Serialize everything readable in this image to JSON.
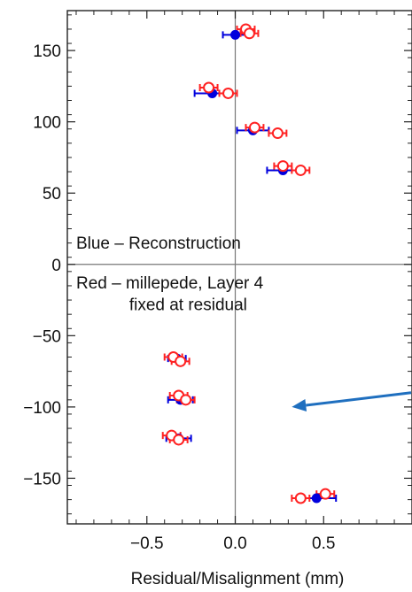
{
  "chart_data": {
    "type": "scatter",
    "xlabel": "Residual/Misalignment (mm)",
    "ylabel": "",
    "xlim": [
      -0.95,
      1.0
    ],
    "ylim": [
      -182,
      178
    ],
    "x_ticks": [
      -0.5,
      0.0,
      0.5
    ],
    "x_tick_labels": [
      "−0.5",
      "0.0",
      "0.5"
    ],
    "y_ticks": [
      150,
      100,
      50,
      0,
      -50,
      -100,
      -150
    ],
    "y_tick_labels": [
      "150",
      "100",
      "50",
      "0",
      "−50",
      "−100",
      "−150"
    ],
    "grid": false,
    "annotations": [
      {
        "text": "Blue – Reconstruction",
        "x": -0.9,
        "y": 11
      },
      {
        "text": "Red – millepede, Layer 4",
        "x": -0.9,
        "y": -17
      },
      {
        "text": "fixed at residual",
        "x": -0.6,
        "y": -32
      }
    ],
    "arrow": {
      "color": "#1f6fbf",
      "from": [
        1.0,
        -90
      ],
      "to": [
        0.32,
        -100
      ]
    },
    "series": [
      {
        "color": "#0000dd",
        "marker": "filled-circle",
        "points": [
          {
            "x": 0.0,
            "y": 161,
            "xerr": 0.07
          },
          {
            "x": -0.13,
            "y": 120,
            "xerr": 0.1
          },
          {
            "x": 0.1,
            "y": 94,
            "xerr": 0.09
          },
          {
            "x": 0.27,
            "y": 66,
            "xerr": 0.09
          },
          {
            "x": -0.33,
            "y": -66,
            "xerr": 0.05
          },
          {
            "x": -0.31,
            "y": -95,
            "xerr": 0.07
          },
          {
            "x": -0.32,
            "y": -122,
            "xerr": 0.07
          },
          {
            "x": 0.46,
            "y": -164,
            "xerr": 0.11
          }
        ]
      },
      {
        "color": "#ff2222",
        "marker": "open-circle",
        "points": [
          {
            "x": 0.06,
            "y": 165,
            "xerr": 0.05
          },
          {
            "x": 0.08,
            "y": 162,
            "xerr": 0.05
          },
          {
            "x": -0.15,
            "y": 124,
            "xerr": 0.05
          },
          {
            "x": -0.04,
            "y": 120,
            "xerr": 0.05
          },
          {
            "x": 0.11,
            "y": 96,
            "xerr": 0.05
          },
          {
            "x": 0.24,
            "y": 92,
            "xerr": 0.05
          },
          {
            "x": 0.27,
            "y": 69,
            "xerr": 0.05
          },
          {
            "x": 0.37,
            "y": 66,
            "xerr": 0.05
          },
          {
            "x": -0.35,
            "y": -65,
            "xerr": 0.05
          },
          {
            "x": -0.31,
            "y": -68,
            "xerr": 0.05
          },
          {
            "x": -0.32,
            "y": -92,
            "xerr": 0.05
          },
          {
            "x": -0.28,
            "y": -95,
            "xerr": 0.05
          },
          {
            "x": -0.36,
            "y": -120,
            "xerr": 0.05
          },
          {
            "x": -0.32,
            "y": -123,
            "xerr": 0.05
          },
          {
            "x": 0.51,
            "y": -161,
            "xerr": 0.05
          },
          {
            "x": 0.37,
            "y": -164,
            "xerr": 0.05
          }
        ]
      }
    ]
  }
}
